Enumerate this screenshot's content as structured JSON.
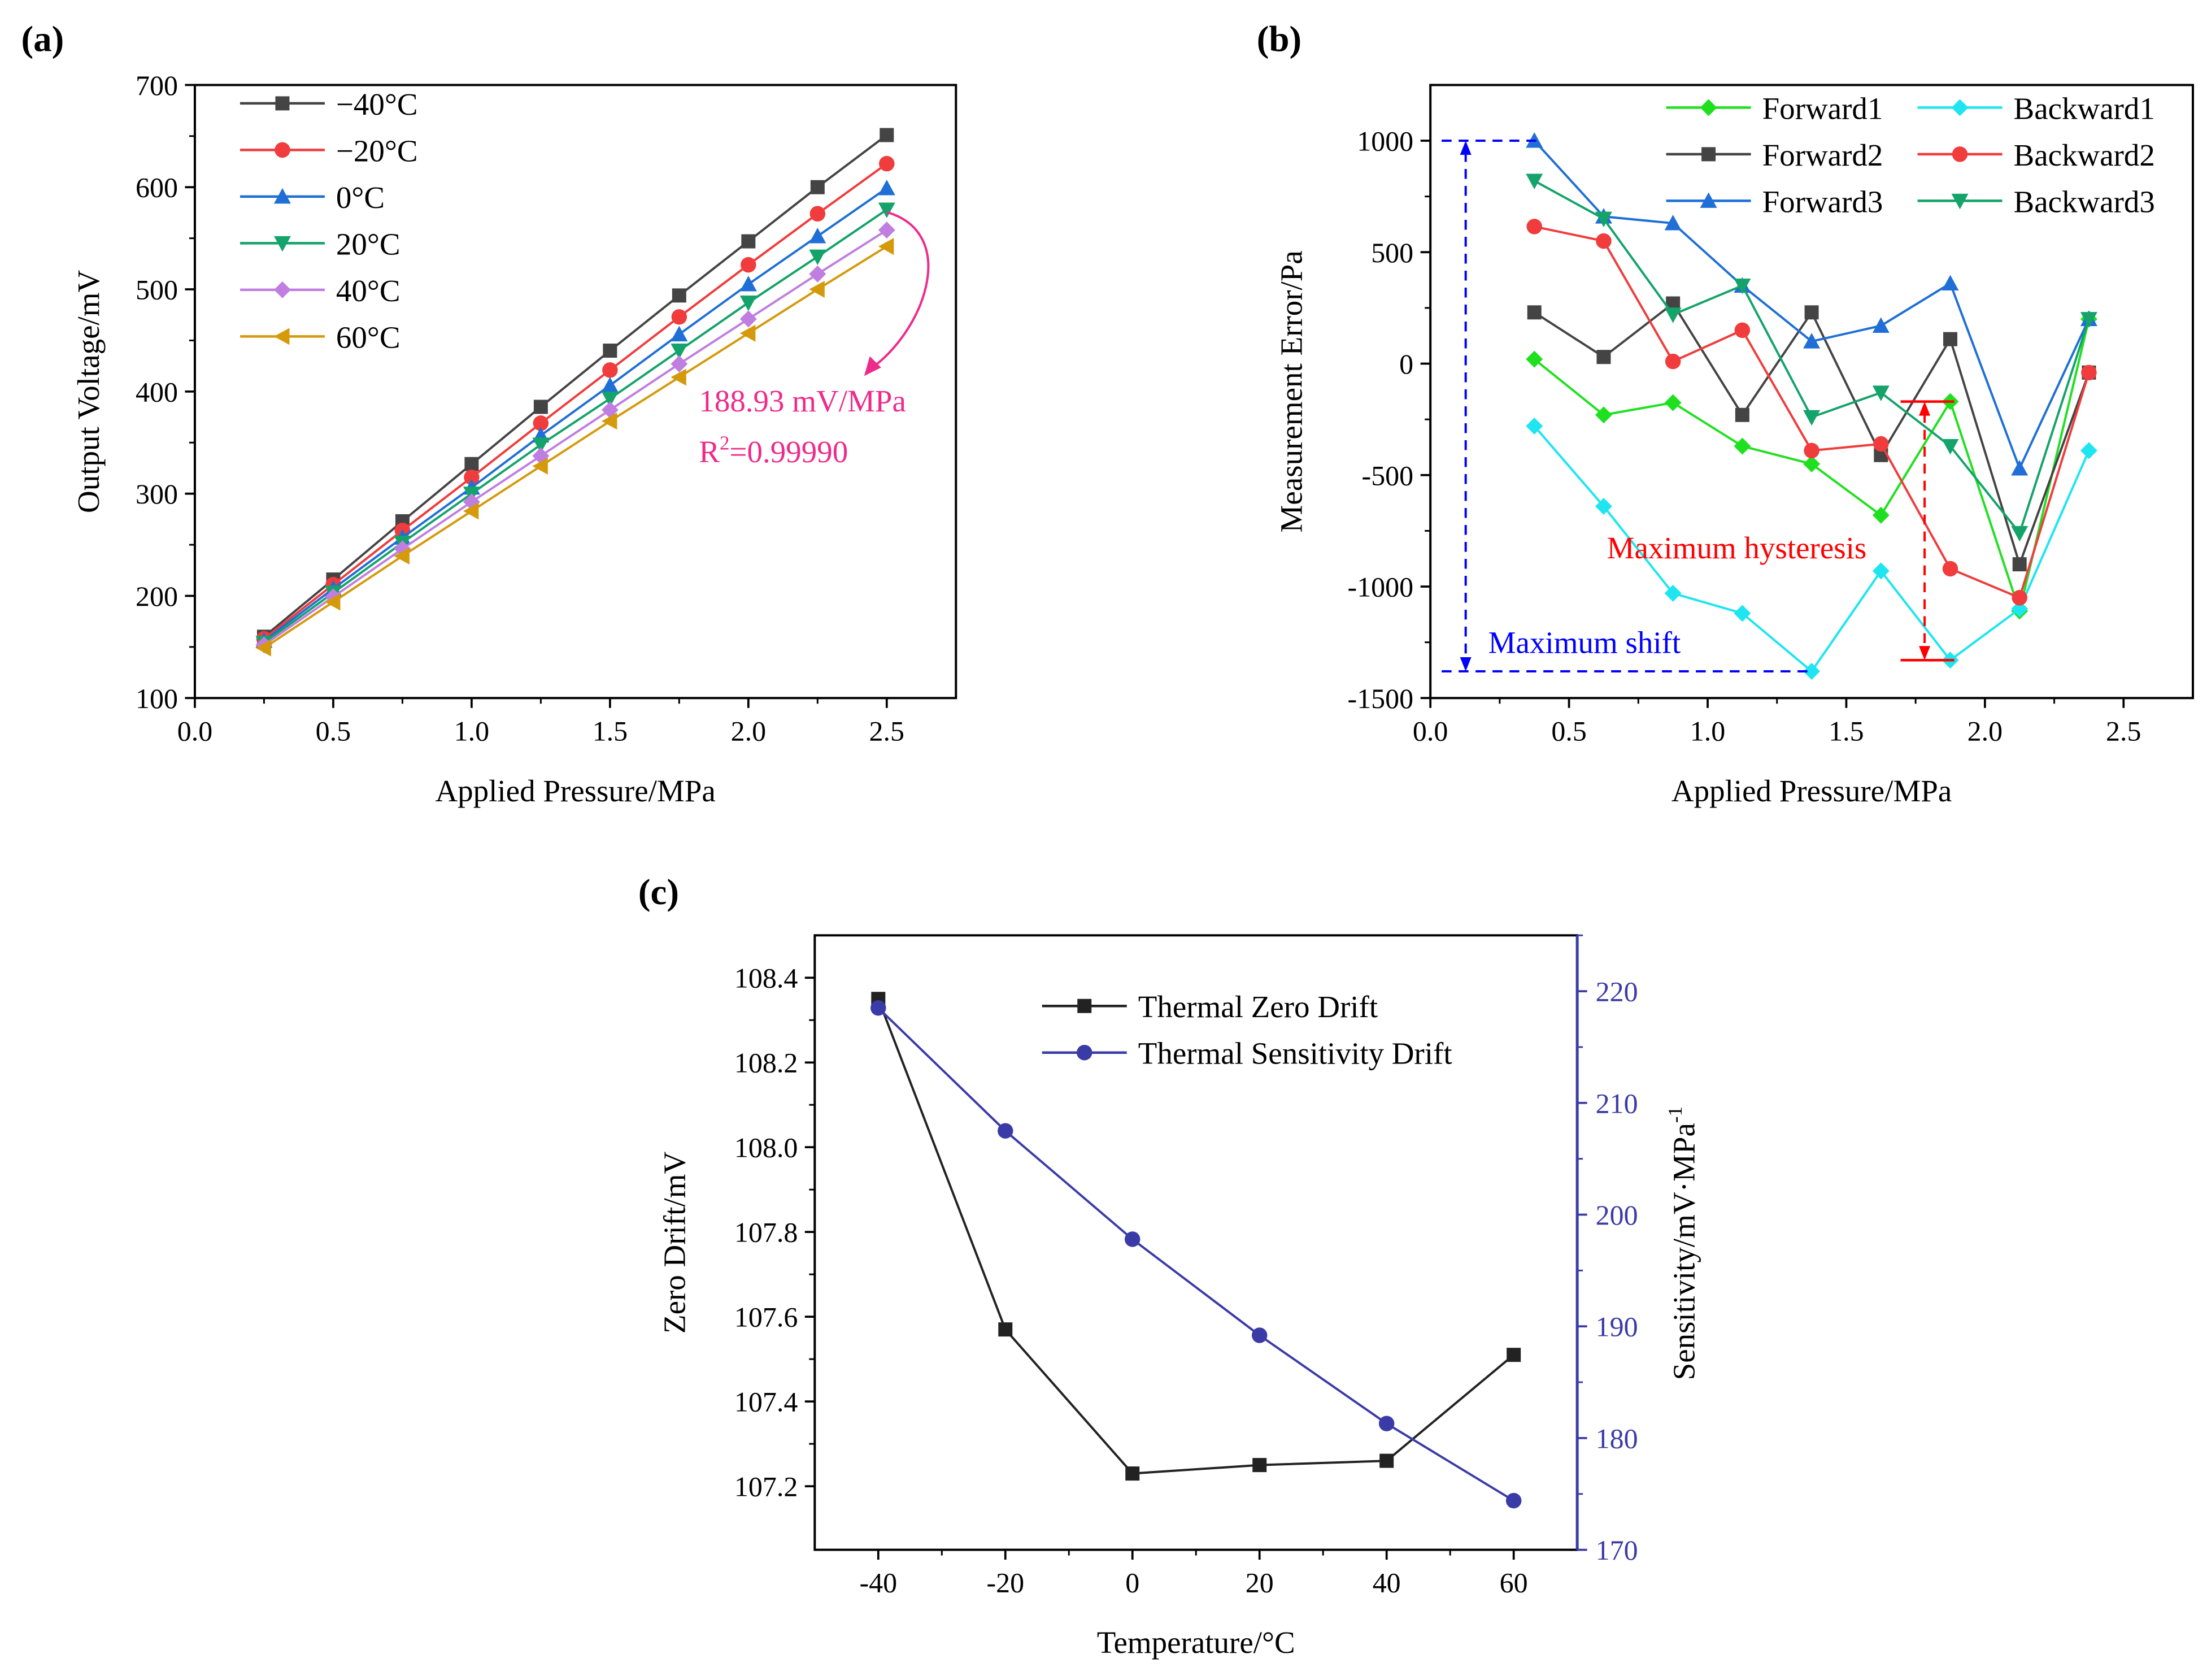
{
  "chart_data": [
    {
      "panel": "(a)",
      "type": "line",
      "xlabel": "Applied Pressure/MPa",
      "ylabel": "Output Voltage/mV",
      "xlim": [
        0,
        2.7
      ],
      "ylim": [
        100,
        700
      ],
      "xticks": [
        "0.0",
        "0.5",
        "1.0",
        "1.5",
        "2.0",
        "2.5"
      ],
      "yticks": [
        "100",
        "200",
        "300",
        "400",
        "500",
        "600",
        "700"
      ],
      "x": [
        0.25,
        0.5,
        0.75,
        1.0,
        1.25,
        1.5,
        1.75,
        2.0,
        2.25,
        2.5
      ],
      "series": [
        {
          "name": "−40°C",
          "color": "#444444",
          "marker": "square",
          "values": [
            160,
            216,
            273,
            329,
            385,
            440,
            494,
            547,
            600,
            651
          ]
        },
        {
          "name": "−20°C",
          "color": "#f03c3c",
          "marker": "circle",
          "values": [
            158,
            211,
            264,
            316,
            369,
            421,
            473,
            524,
            574,
            623
          ]
        },
        {
          "name": "0°C",
          "color": "#1f6fd6",
          "marker": "triangle-up",
          "values": [
            156,
            207,
            257,
            306,
            357,
            406,
            456,
            505,
            552,
            599
          ]
        },
        {
          "name": "20°C",
          "color": "#14a36a",
          "marker": "triangle-down",
          "values": [
            154,
            203,
            252,
            300,
            348,
            393,
            440,
            487,
            532,
            578
          ]
        },
        {
          "name": "40°C",
          "color": "#c07ee0",
          "marker": "diamond",
          "values": [
            152,
            199,
            246,
            292,
            337,
            382,
            427,
            471,
            515,
            558
          ]
        },
        {
          "name": "60°C",
          "color": "#d49a0c",
          "marker": "triangle-left",
          "values": [
            149,
            194,
            239,
            283,
            327,
            371,
            414,
            457,
            500,
            542
          ]
        }
      ],
      "annotation": {
        "line1": "188.93 mV/MPa",
        "line2_prefix": "R",
        "line2_sup": "2",
        "line2_suffix": "=0.99990",
        "color": "#ee2a8a"
      }
    },
    {
      "panel": "(b)",
      "type": "line",
      "xlabel": "Applied Pressure/MPa",
      "ylabel": "Measurement Error/Pa",
      "xlim": [
        0,
        2.7
      ],
      "ylim": [
        -1500,
        1250
      ],
      "xticks": [
        "0.0",
        "0.5",
        "1.0",
        "1.5",
        "2.0",
        "2.5"
      ],
      "yticks": [
        "-1500",
        "-1000",
        "-500",
        "0",
        "500",
        "1000"
      ],
      "x": [
        0.375,
        0.625,
        0.875,
        1.125,
        1.375,
        1.625,
        1.875,
        2.125,
        2.375
      ],
      "series": [
        {
          "name": "Forward1",
          "color": "#1fe01f",
          "marker": "diamond",
          "values": [
            20,
            -230,
            -175,
            -370,
            -450,
            -680,
            -170,
            -1110,
            200
          ]
        },
        {
          "name": "Backward1",
          "color": "#1ee5f0",
          "marker": "diamond",
          "values": [
            -280,
            -640,
            -1030,
            -1120,
            -1380,
            -930,
            -1330,
            -1100,
            -390
          ]
        },
        {
          "name": "Forward2",
          "color": "#444444",
          "marker": "square",
          "values": [
            230,
            30,
            270,
            -230,
            230,
            -410,
            110,
            -900,
            -40
          ]
        },
        {
          "name": "Backward2",
          "color": "#f03c3c",
          "marker": "circle",
          "values": [
            615,
            550,
            10,
            150,
            -390,
            -360,
            -920,
            -1050,
            -40
          ]
        },
        {
          "name": "Forward3",
          "color": "#1f6fd6",
          "marker": "triangle-up",
          "values": [
            1000,
            660,
            630,
            350,
            100,
            170,
            360,
            -470,
            200
          ]
        },
        {
          "name": "Backward3",
          "color": "#14a36a",
          "marker": "triangle-down",
          "values": [
            820,
            650,
            220,
            350,
            -240,
            -130,
            -370,
            -760,
            200
          ]
        }
      ],
      "annotations": {
        "hysteresis": "Maximum hysteresis",
        "shift": "Maximum shift",
        "hysteresis_color": "#ff0000",
        "shift_color": "#0000ff"
      }
    },
    {
      "panel": "(c)",
      "type": "line",
      "xlabel": "Temperature/°C",
      "ylabel": "Zero Drift/mV",
      "ylabel_right": "Sensitivity/mV·MPa",
      "ylabel_right_sup": "-1",
      "xlim": [
        -50,
        70
      ],
      "ylim": [
        107.05,
        108.5
      ],
      "ylim_right": [
        170,
        225
      ],
      "xticks": [
        "-40",
        "-20",
        "0",
        "20",
        "40",
        "60"
      ],
      "yticks": [
        "107.2",
        "107.4",
        "107.6",
        "107.8",
        "108.0",
        "108.2",
        "108.4"
      ],
      "yticks_right": [
        "170",
        "180",
        "190",
        "200",
        "210",
        "220"
      ],
      "x": [
        -40,
        -20,
        0,
        20,
        40,
        60
      ],
      "series": [
        {
          "name": "Thermal Zero Drift",
          "color": "#222222",
          "marker": "square",
          "axis": "left",
          "values": [
            108.35,
            107.57,
            107.23,
            107.25,
            107.26,
            107.51
          ]
        },
        {
          "name": "Thermal Sensitivity Drift",
          "color": "#3b3ba8",
          "marker": "circle",
          "axis": "right",
          "values": [
            218.5,
            207.5,
            197.8,
            189.2,
            181.3,
            174.4
          ]
        }
      ]
    }
  ]
}
